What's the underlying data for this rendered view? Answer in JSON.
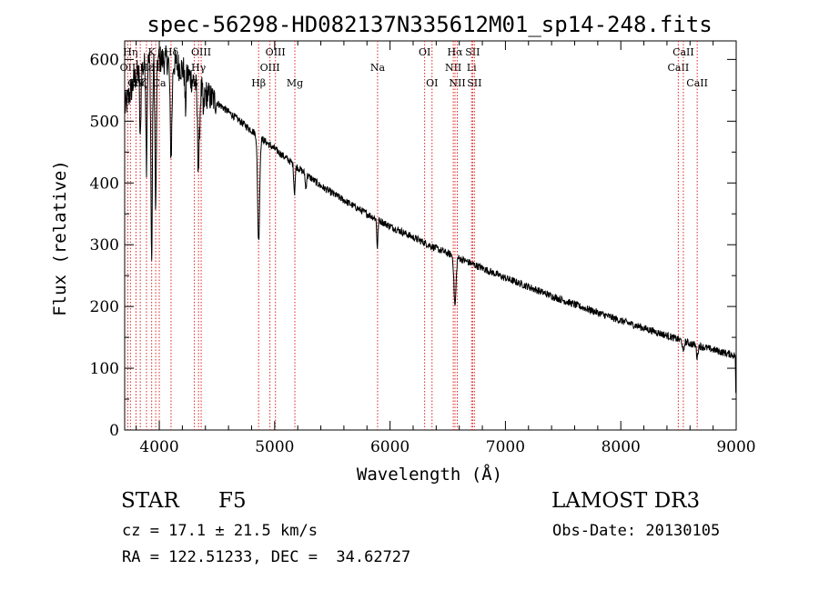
{
  "chart_data": {
    "type": "line",
    "title": "spec-56298-HD082137N335612M01_sp14-248.fits",
    "xlabel": "Wavelength (Å)",
    "ylabel": "Flux (relative)",
    "xlim": [
      3700,
      9000
    ],
    "ylim": [
      0,
      630
    ],
    "xticks": [
      4000,
      5000,
      6000,
      7000,
      8000,
      9000
    ],
    "yticks": [
      0,
      100,
      200,
      300,
      400,
      500,
      600
    ],
    "continuum": {
      "x": [
        3700,
        3800,
        3900,
        4000,
        4100,
        4200,
        4300,
        4400,
        4500,
        4600,
        4700,
        4800,
        4900,
        5000,
        5200,
        5400,
        5600,
        5800,
        6000,
        6200,
        6400,
        6600,
        6800,
        7000,
        7200,
        7400,
        7600,
        7800,
        8000,
        8200,
        8400,
        8600,
        8800,
        9000
      ],
      "y": [
        520,
        575,
        595,
        600,
        598,
        585,
        565,
        545,
        530,
        515,
        500,
        485,
        470,
        455,
        425,
        395,
        372,
        350,
        330,
        312,
        294,
        278,
        262,
        246,
        232,
        217,
        203,
        190,
        177,
        165,
        153,
        140,
        130,
        120
      ]
    },
    "absorption_lines": [
      {
        "center": 3934,
        "depth": 330,
        "width": 6
      },
      {
        "center": 3969,
        "depth": 250,
        "width": 6
      },
      {
        "center": 3889,
        "depth": 160,
        "width": 5
      },
      {
        "center": 3835,
        "depth": 120,
        "width": 5
      },
      {
        "center": 4102,
        "depth": 150,
        "width": 8
      },
      {
        "center": 4227,
        "depth": 60,
        "width": 5
      },
      {
        "center": 4340,
        "depth": 130,
        "width": 9
      },
      {
        "center": 4383,
        "depth": 40,
        "width": 5
      },
      {
        "center": 4861,
        "depth": 170,
        "width": 9
      },
      {
        "center": 5172,
        "depth": 45,
        "width": 6
      },
      {
        "center": 5270,
        "depth": 25,
        "width": 5
      },
      {
        "center": 5890,
        "depth": 45,
        "width": 5
      },
      {
        "center": 6563,
        "depth": 80,
        "width": 9
      },
      {
        "center": 8542,
        "depth": 20,
        "width": 6
      },
      {
        "center": 8662,
        "depth": 20,
        "width": 6
      }
    ],
    "line_markers": [
      {
        "x": 3727,
        "label": "OII",
        "row": 1
      },
      {
        "x": 3750,
        "label": "Hη",
        "row": 0
      },
      {
        "x": 3798,
        "label": "CN",
        "row": 2
      },
      {
        "x": 3835,
        "label": "Hζ",
        "row": 2
      },
      {
        "x": 3889,
        "label": "Hε",
        "row": 1
      },
      {
        "x": 3934,
        "label": "K",
        "row": 0
      },
      {
        "x": 3969,
        "label": "H",
        "row": 1
      },
      {
        "x": 4000,
        "label": "Ca",
        "row": 2
      },
      {
        "x": 4102,
        "label": "Hδ",
        "row": 0
      },
      {
        "x": 4304,
        "label": "G",
        "row": 2
      },
      {
        "x": 4340,
        "label": "Hγ",
        "row": 1
      },
      {
        "x": 4363,
        "label": "OIII",
        "row": 0
      },
      {
        "x": 4861,
        "label": "Hβ",
        "row": 2
      },
      {
        "x": 4959,
        "label": "OIII",
        "row": 1
      },
      {
        "x": 5007,
        "label": "OIII",
        "row": 0
      },
      {
        "x": 5175,
        "label": "Mg",
        "row": 2
      },
      {
        "x": 5892,
        "label": "Na",
        "row": 1
      },
      {
        "x": 6300,
        "label": "OI",
        "row": 0
      },
      {
        "x": 6364,
        "label": "OI",
        "row": 2
      },
      {
        "x": 6548,
        "label": "NII",
        "row": 1
      },
      {
        "x": 6563,
        "label": "Hα",
        "row": 0
      },
      {
        "x": 6583,
        "label": "NII",
        "row": 2
      },
      {
        "x": 6707,
        "label": "Li",
        "row": 1
      },
      {
        "x": 6716,
        "label": "SII",
        "row": 0
      },
      {
        "x": 6731,
        "label": "SII",
        "row": 2
      },
      {
        "x": 8498,
        "label": "CaII",
        "row": 1
      },
      {
        "x": 8542,
        "label": "CaII",
        "row": 0
      },
      {
        "x": 8662,
        "label": "CaII",
        "row": 2
      }
    ],
    "noise_amplitude": 6
  },
  "info": {
    "class": "STAR",
    "subclass": "F5",
    "cz": "cz = 17.1 ± 21.5 km/s",
    "coords": "RA = 122.51233, DEC =  34.62727",
    "survey": "LAMOST DR3",
    "obs_date": "Obs-Date: 20130105"
  }
}
